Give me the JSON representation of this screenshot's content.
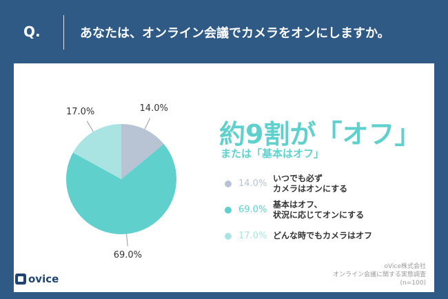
{
  "header": {
    "q_label": "Q.",
    "question": "あなたは、オンライン会議でカメラをオンにしますか。"
  },
  "chart_data": {
    "type": "pie",
    "slices": [
      {
        "label": "いつでも必ずカメラはオンにする",
        "label_lines": [
          "いつでも必ず",
          "カメラはオンにする"
        ],
        "value": 14.0,
        "value_text": "14.0%",
        "color": "#b8c4d3"
      },
      {
        "label": "基本はオフ、状況に応じてオンにする",
        "label_lines": [
          "基本はオフ、",
          "状況に応じてオンにする"
        ],
        "value": 69.0,
        "value_text": "69.0%",
        "color": "#5fd0cc"
      },
      {
        "label": "どんな時でもカメラはオフ",
        "label_lines": [
          "どんな時でもカメラはオフ"
        ],
        "value": 17.0,
        "value_text": "17.0%",
        "color": "#a9e4e3"
      }
    ]
  },
  "headline": "約9割が「オフ」",
  "subhead": "または「基本はオフ」",
  "brand": {
    "name": "ovice"
  },
  "source": {
    "company": "oVice株式会社",
    "survey": "オンライン会議に関する実態調査",
    "sample": "(n=100)"
  },
  "colors": {
    "header_bg": "#2f5a85",
    "accent": "#5fd0cc",
    "brand": "#1f4470"
  }
}
